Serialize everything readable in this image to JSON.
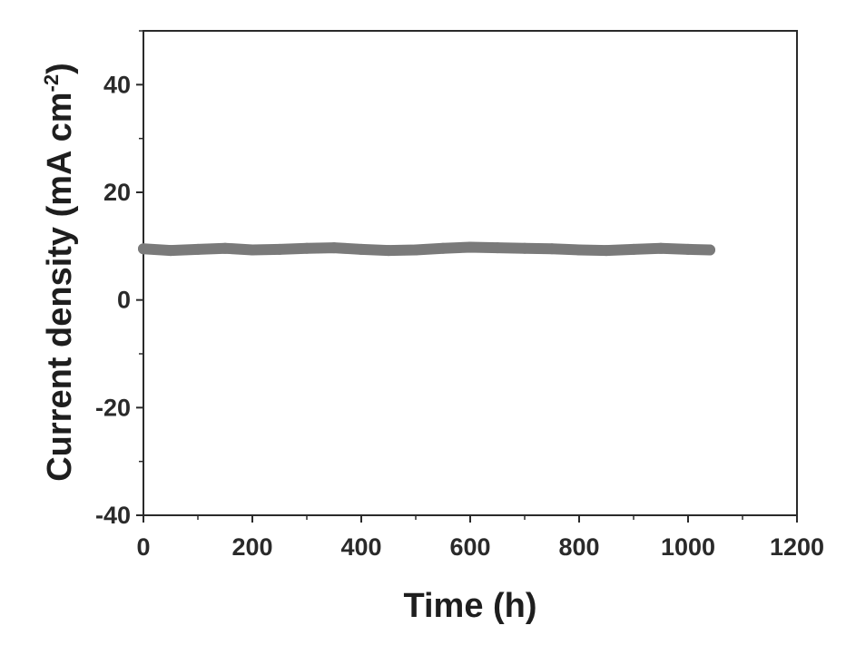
{
  "chart_data": {
    "type": "line",
    "title": "",
    "xlabel": "Time (h)",
    "ylabel": "Current density (mA cm",
    "ylabel_superscript": "-2",
    "ylabel_close": ")",
    "xlim": [
      0,
      1200
    ],
    "ylim": [
      -40,
      50
    ],
    "x_ticks": [
      0,
      200,
      400,
      600,
      800,
      1000,
      1200
    ],
    "x_tick_labels": [
      "0",
      "200",
      "400",
      "600",
      "800",
      "1000",
      "1200"
    ],
    "y_ticks": [
      -40,
      -20,
      0,
      20,
      40
    ],
    "y_tick_labels": [
      "-40",
      "-20",
      "0",
      "20",
      "40"
    ],
    "grid": false,
    "series": [
      {
        "color": "#7a7a7a",
        "x": [
          0,
          50,
          100,
          150,
          200,
          250,
          300,
          350,
          400,
          450,
          500,
          550,
          600,
          650,
          700,
          750,
          800,
          850,
          900,
          950,
          1000,
          1040
        ],
        "y": [
          9.5,
          9.2,
          9.4,
          9.6,
          9.3,
          9.4,
          9.6,
          9.7,
          9.4,
          9.2,
          9.3,
          9.6,
          9.8,
          9.7,
          9.6,
          9.5,
          9.3,
          9.2,
          9.4,
          9.6,
          9.4,
          9.3
        ]
      }
    ]
  }
}
